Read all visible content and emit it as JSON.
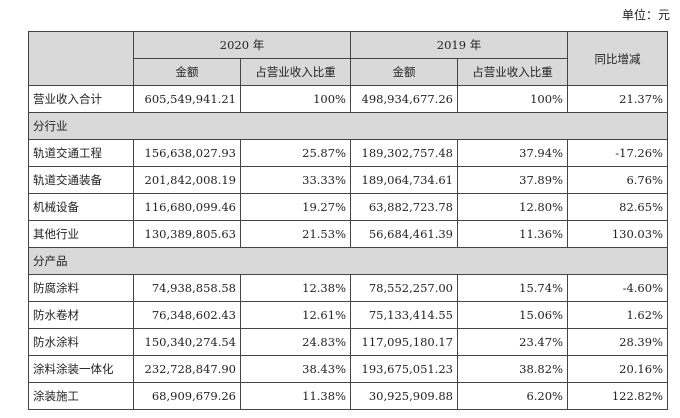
{
  "unit_label": "单位：元",
  "headers": {
    "year_2020": "2020 年",
    "year_2019": "2019 年",
    "yoy": "同比增减",
    "amount": "金额",
    "share": "占营业收入比重"
  },
  "total": {
    "label": "营业收入合计",
    "v2020": "605,549,941.21",
    "s2020": "100%",
    "v2019": "498,934,677.26",
    "s2019": "100%",
    "yoy": "21.37%"
  },
  "industry_section": "分行业",
  "industry_rows": [
    {
      "label": "轨道交通工程",
      "v2020": "156,638,027.93",
      "s2020": "25.87%",
      "v2019": "189,302,757.48",
      "s2019": "37.94%",
      "yoy": "-17.26%"
    },
    {
      "label": "轨道交通装备",
      "v2020": "201,842,008.19",
      "s2020": "33.33%",
      "v2019": "189,064,734.61",
      "s2019": "37.89%",
      "yoy": "6.76%"
    },
    {
      "label": "机械设备",
      "v2020": "116,680,099.46",
      "s2020": "19.27%",
      "v2019": "63,882,723.78",
      "s2019": "12.80%",
      "yoy": "82.65%"
    },
    {
      "label": "其他行业",
      "v2020": "130,389,805.63",
      "s2020": "21.53%",
      "v2019": "56,684,461.39",
      "s2019": "11.36%",
      "yoy": "130.03%"
    }
  ],
  "product_section": "分产品",
  "product_rows": [
    {
      "label": "防腐涂料",
      "v2020": "74,938,858.58",
      "s2020": "12.38%",
      "v2019": "78,552,257.00",
      "s2019": "15.74%",
      "yoy": "-4.60%"
    },
    {
      "label": "防水卷材",
      "v2020": "76,348,602.43",
      "s2020": "12.61%",
      "v2019": "75,133,414.55",
      "s2019": "15.06%",
      "yoy": "1.62%"
    },
    {
      "label": "防水涂料",
      "v2020": "150,340,274.54",
      "s2020": "24.83%",
      "v2019": "117,095,180.17",
      "s2019": "23.47%",
      "yoy": "28.39%"
    },
    {
      "label": "涂料涂装一体化",
      "v2020": "232,728,847.90",
      "s2020": "38.43%",
      "v2019": "193,675,051.23",
      "s2019": "38.82%",
      "yoy": "20.16%"
    },
    {
      "label": "涂装施工",
      "v2020": "68,909,679.26",
      "s2020": "11.38%",
      "v2019": "30,925,909.88",
      "s2019": "6.20%",
      "yoy": "122.82%"
    }
  ]
}
